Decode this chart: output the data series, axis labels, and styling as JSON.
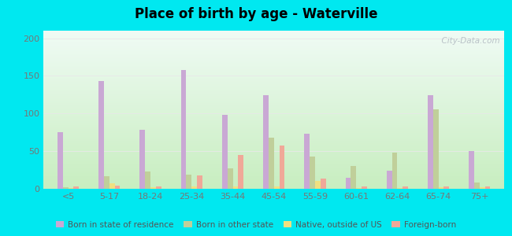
{
  "title": "Place of birth by age - Waterville",
  "categories": [
    "<5",
    "5-17",
    "18-24",
    "25-34",
    "35-44",
    "45-54",
    "55-59",
    "60-61",
    "62-64",
    "65-74",
    "75+"
  ],
  "series": {
    "Born in state of residence": [
      75,
      143,
      78,
      158,
      98,
      124,
      73,
      15,
      24,
      124,
      50
    ],
    "Born in other state": [
      2,
      17,
      23,
      19,
      27,
      68,
      43,
      30,
      48,
      106,
      8
    ],
    "Native, outside of US": [
      1,
      7,
      2,
      3,
      3,
      3,
      10,
      1,
      1,
      2,
      2
    ],
    "Foreign-born": [
      3,
      4,
      3,
      18,
      45,
      57,
      14,
      3,
      3,
      3,
      3
    ]
  },
  "colors": {
    "Born in state of residence": "#c9a8d4",
    "Born in other state": "#c0cf9a",
    "Native, outside of US": "#f0e080",
    "Foreign-born": "#f0a898"
  },
  "ylim": [
    0,
    210
  ],
  "yticks": [
    0,
    50,
    100,
    150,
    200
  ],
  "bar_width": 0.13,
  "background_color_bottom": "#c8eec0",
  "background_color_top": "#f0fbf5",
  "outer_background": "#00e8f0",
  "grid_color": "#e8e8e8",
  "watermark": "  City-Data.com"
}
